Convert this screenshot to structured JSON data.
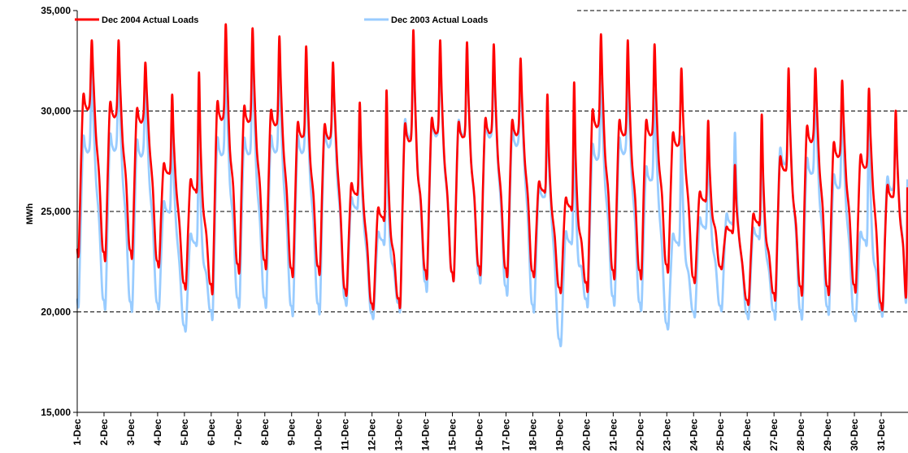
{
  "chart_data": {
    "type": "line",
    "title": "",
    "xlabel": "",
    "ylabel": "MWh",
    "ylim": [
      15000,
      35000
    ],
    "yticks": [
      15000,
      20000,
      25000,
      30000,
      35000
    ],
    "ytick_labels": [
      "15,000",
      "20,000",
      "25,000",
      "30,000",
      "35,000"
    ],
    "grid": "horizontal dashed",
    "legend_position": "top",
    "categories": [
      "1-Dec",
      "2-Dec",
      "3-Dec",
      "4-Dec",
      "5-Dec",
      "6-Dec",
      "7-Dec",
      "8-Dec",
      "9-Dec",
      "10-Dec",
      "11-Dec",
      "12-Dec",
      "13-Dec",
      "14-Dec",
      "15-Dec",
      "16-Dec",
      "17-Dec",
      "18-Dec",
      "19-Dec",
      "20-Dec",
      "21-Dec",
      "22-Dec",
      "23-Dec",
      "24-Dec",
      "25-Dec",
      "26-Dec",
      "27-Dec",
      "28-Dec",
      "29-Dec",
      "30-Dec",
      "31-Dec"
    ],
    "series": [
      {
        "name": "Dec 2004 Actual Loads",
        "color": "#ff0000",
        "daily_min": [
          23000,
          22800,
          22900,
          22400,
          21300,
          21200,
          22200,
          22400,
          22000,
          22100,
          21000,
          20300,
          20500,
          21900,
          21800,
          22100,
          22000,
          21900,
          21100,
          21300,
          21900,
          21900,
          22200,
          21600,
          22200,
          20500,
          20800,
          21100,
          21100,
          21200,
          20300
        ],
        "daily_mid": [
          30700,
          30300,
          30000,
          27300,
          26500,
          30300,
          30100,
          29900,
          29300,
          29200,
          26300,
          25100,
          29200,
          29500,
          29300,
          29500,
          29400,
          26400,
          25600,
          29900,
          29400,
          29400,
          28800,
          25900,
          24200,
          24800,
          27600,
          29100,
          28300,
          27700,
          26200
        ],
        "daily_max": [
          33500,
          33500,
          32400,
          30800,
          31900,
          34300,
          34100,
          33700,
          33200,
          32400,
          30400,
          31000,
          34000,
          33500,
          33400,
          33300,
          32600,
          30800,
          31400,
          33800,
          33500,
          33300,
          32100,
          29500,
          27300,
          29800,
          32100,
          32100,
          31500,
          31100,
          30000
        ]
      },
      {
        "name": "Dec 2003 Actual Loads",
        "color": "#99ccff",
        "daily_min": [
          20500,
          20400,
          20300,
          20300,
          19200,
          19900,
          20500,
          20500,
          20100,
          20200,
          20500,
          19800,
          20300,
          21300,
          21800,
          21700,
          21100,
          20200,
          18500,
          20500,
          20600,
          20300,
          19300,
          19900,
          20200,
          19800,
          19900,
          19900,
          20100,
          19700,
          20000
        ],
        "daily_mid": [
          28600,
          28700,
          28400,
          25400,
          23800,
          28500,
          28500,
          28600,
          28600,
          28900,
          25600,
          23900,
          29400,
          29400,
          29400,
          29300,
          28900,
          26200,
          23900,
          28200,
          28500,
          27100,
          23800,
          24600,
          24800,
          24100,
          28000,
          27500,
          26700,
          23900,
          26600
        ],
        "daily_max": [
          32200,
          32200,
          31300,
          29300,
          29000,
          32700,
          32900,
          32500,
          32300,
          32100,
          30000,
          30000,
          33100,
          32900,
          33200,
          32500,
          31800,
          29800,
          28800,
          31600,
          31700,
          31000,
          28700,
          28800,
          28900,
          28900,
          31600,
          31700,
          30600,
          30600,
          29500
        ]
      }
    ]
  }
}
